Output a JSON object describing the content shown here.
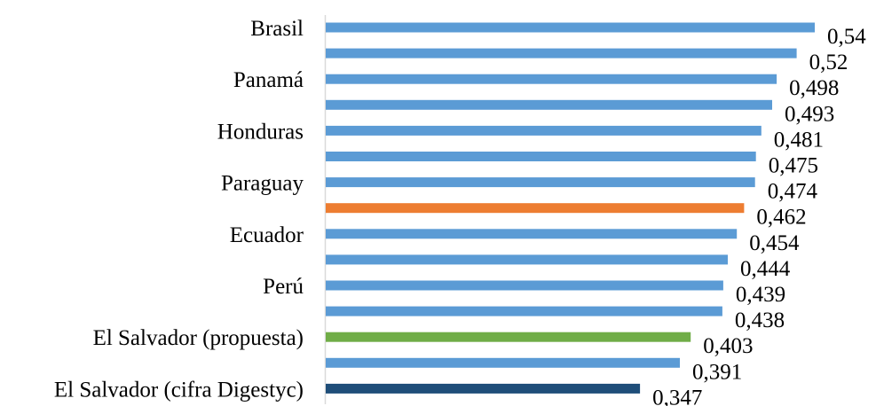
{
  "chart_data": {
    "type": "bar",
    "orientation": "horizontal",
    "categories": [
      "Brasil",
      "",
      "Panamá",
      "",
      "Honduras",
      "",
      "Paraguay",
      "",
      "Ecuador",
      "",
      "Perú",
      "",
      "El Salvador (propuesta)",
      "",
      "El Salvador (cifra Digestyc)"
    ],
    "values": [
      0.54,
      0.52,
      0.498,
      0.493,
      0.481,
      0.475,
      0.474,
      0.462,
      0.454,
      0.444,
      0.439,
      0.438,
      0.403,
      0.391,
      0.347
    ],
    "value_labels": [
      "0,54",
      "0,52",
      "0,498",
      "0,493",
      "0,481",
      "0,475",
      "0,474",
      "0,462",
      "0,454",
      "0,444",
      "0,439",
      "0,438",
      "0,403",
      "0,391",
      "0,347"
    ],
    "bar_colors": [
      "#5b9bd5",
      "#5b9bd5",
      "#5b9bd5",
      "#5b9bd5",
      "#5b9bd5",
      "#5b9bd5",
      "#5b9bd5",
      "#ed7d31",
      "#5b9bd5",
      "#5b9bd5",
      "#5b9bd5",
      "#5b9bd5",
      "#70ad47",
      "#5b9bd5",
      "#1f4e79"
    ],
    "xlim": [
      0,
      0.54
    ],
    "grid": false,
    "legend": "none",
    "title": "",
    "xlabel": "",
    "ylabel": ""
  }
}
